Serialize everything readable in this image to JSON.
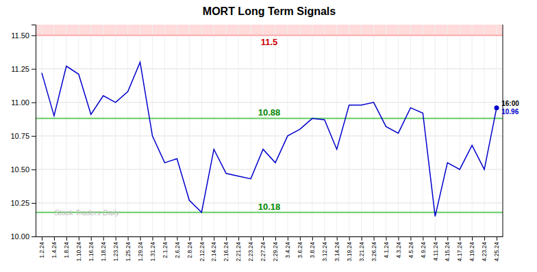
{
  "chart_data": {
    "type": "line",
    "title": "MORT Long Term Signals",
    "categories": [
      "1.2.24",
      "1.4.24",
      "1.8.24",
      "1.10.24",
      "1.16.24",
      "1.18.24",
      "1.23.24",
      "1.25.24",
      "1.29.24",
      "1.31.24",
      "2.1.24",
      "2.6.24",
      "2.8.24",
      "2.12.24",
      "2.14.24",
      "2.16.24",
      "2.21.24",
      "2.23.24",
      "2.27.24",
      "2.29.24",
      "3.4.24",
      "3.6.24",
      "3.8.24",
      "3.12.24",
      "3.14.24",
      "3.19.24",
      "3.21.24",
      "3.26.24",
      "4.1.24",
      "4.3.24",
      "4.5.24",
      "4.9.24",
      "4.11.24",
      "4.15.24",
      "4.17.24",
      "4.19.24",
      "4.23.24",
      "4.25.24"
    ],
    "values": [
      11.22,
      10.9,
      11.27,
      11.21,
      10.91,
      11.05,
      11.0,
      11.08,
      11.3,
      10.75,
      10.55,
      10.58,
      10.27,
      10.18,
      10.65,
      10.47,
      10.45,
      10.43,
      10.65,
      10.55,
      10.75,
      10.8,
      10.88,
      10.87,
      10.65,
      10.98,
      10.98,
      11.0,
      10.82,
      10.77,
      10.96,
      10.92,
      10.15,
      10.55,
      10.5,
      10.68,
      10.5,
      10.96
    ],
    "color": "#0000cc",
    "ylim": [
      10.0,
      11.58
    ],
    "yticks": [
      {
        "value": 10.0,
        "label": "10.00"
      },
      10.25,
      {
        "value": 10.5,
        "label": "10.50"
      },
      10.75,
      {
        "value": 11.0,
        "label": "11.00"
      },
      11.25,
      {
        "value": 11.5,
        "label": "11.50"
      }
    ],
    "grid": true,
    "bands": [
      {
        "from": 11.5,
        "to": 11.58,
        "color": "#ffcccc"
      }
    ],
    "reference_lines": [
      {
        "value": 11.5,
        "label": "11.5",
        "color": "#ffaaaa",
        "label_color": "#cc0000"
      },
      {
        "value": 10.88,
        "label": "10.88",
        "color": "#66cc66",
        "label_color": "#008800"
      },
      {
        "value": 10.18,
        "label": "10.18",
        "color": "#66cc66",
        "label_color": "#008800"
      }
    ],
    "annotations": [
      {
        "text": "16:00",
        "color": "#000000"
      },
      {
        "text": "10.96",
        "color": "#0000cc"
      }
    ],
    "watermark": {
      "text": "Stock Traders Daily",
      "color": "#bbbbbb"
    }
  }
}
